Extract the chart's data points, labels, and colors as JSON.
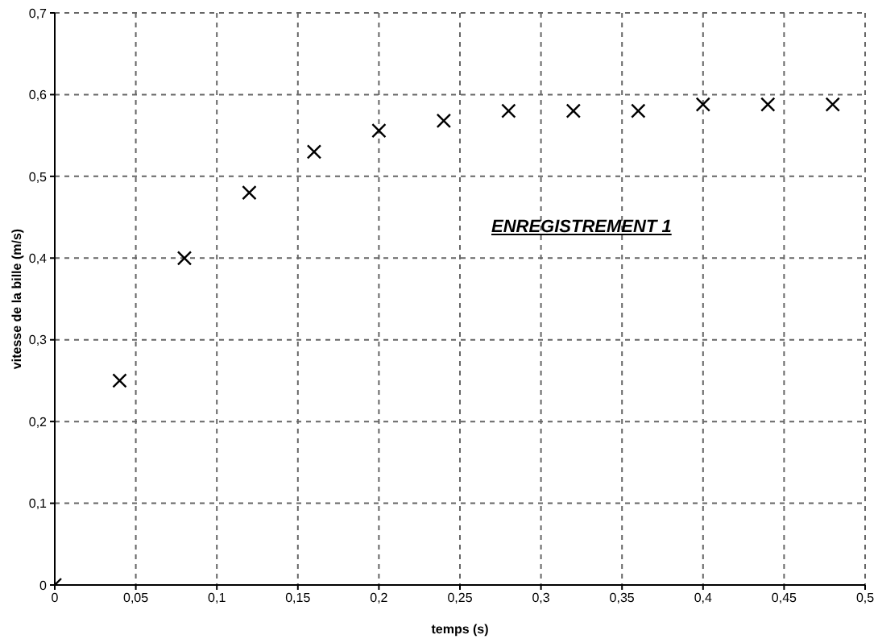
{
  "chart_data": {
    "type": "scatter",
    "xlabel": "temps (s)",
    "ylabel": "vitesse de la bille (m/s)",
    "annotations": [
      "ENREGISTREMENT 1"
    ],
    "x": [
      0,
      0.04,
      0.08,
      0.12,
      0.16,
      0.2,
      0.24,
      0.28,
      0.32,
      0.36,
      0.4,
      0.44,
      0.48
    ],
    "values": [
      0,
      0.25,
      0.4,
      0.48,
      0.53,
      0.556,
      0.568,
      0.58,
      0.58,
      0.58,
      0.588,
      0.588,
      0.588
    ],
    "color": "#000000",
    "marker": "cross",
    "grid": true,
    "xlim": [
      0,
      0.5
    ],
    "xticks": [
      0,
      {
        "value": 0.05,
        "label": "0,05"
      },
      {
        "value": 0.1,
        "label": "0,1"
      },
      {
        "value": 0.15,
        "label": "0,15"
      },
      {
        "value": 0.2,
        "label": "0,2"
      },
      {
        "value": 0.25,
        "label": "0,25"
      },
      {
        "value": 0.3,
        "label": "0,3"
      },
      {
        "value": 0.35,
        "label": "0,35"
      },
      {
        "value": 0.4,
        "label": "0,4"
      },
      {
        "value": 0.45,
        "label": "0,45"
      },
      {
        "value": 0.5,
        "label": "0,5"
      }
    ],
    "ylim": [
      0,
      0.7
    ],
    "yticks": [
      0,
      {
        "value": 0.1,
        "label": "0,1"
      },
      {
        "value": 0.2,
        "label": "0,2"
      },
      {
        "value": 0.3,
        "label": "0,3"
      },
      {
        "value": 0.4,
        "label": "0,4"
      },
      {
        "value": 0.5,
        "label": "0,5"
      },
      {
        "value": 0.6,
        "label": "0,6"
      },
      {
        "value": 0.7,
        "label": "0,7"
      }
    ]
  }
}
